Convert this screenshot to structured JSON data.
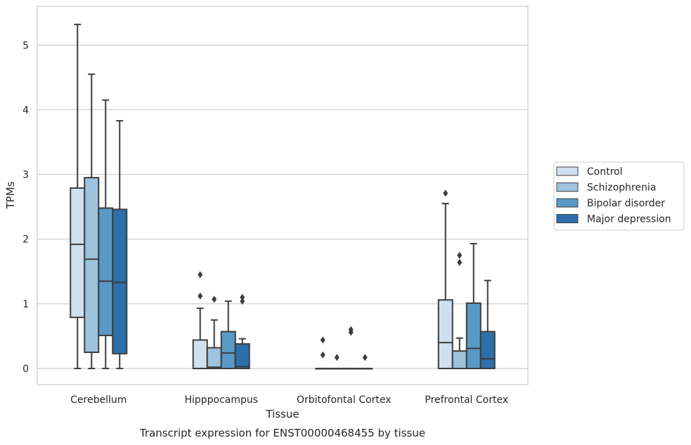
{
  "chart_data": {
    "type": "box",
    "title": "",
    "xlabel": "Tissue",
    "ylabel": "TPMs",
    "caption": "Transcript expression for ENST00000468455 by tissue",
    "ylim": [
      -0.25,
      5.6
    ],
    "yticks": [
      0,
      1,
      2,
      3,
      4,
      5
    ],
    "grid": "horizontal",
    "legend_position": "right",
    "categories": [
      "Cerebellum",
      "Hipppocampus",
      "Orbitofontal Cortex",
      "Prefrontal Cortex"
    ],
    "series": [
      {
        "name": "Control",
        "color": "#cfe0f0",
        "boxes": [
          {
            "min": 0.0,
            "q1": 0.79,
            "median": 1.92,
            "q3": 2.79,
            "max": 5.32,
            "outliers": []
          },
          {
            "min": 0.0,
            "q1": 0.0,
            "median": 0.0,
            "q3": 0.44,
            "max": 0.93,
            "outliers": [
              1.12,
              1.45
            ]
          },
          {
            "min": 0.0,
            "q1": 0.0,
            "median": 0.0,
            "q3": 0.0,
            "max": 0.0,
            "outliers": [
              0.21,
              0.44
            ]
          },
          {
            "min": 0.0,
            "q1": 0.0,
            "median": 0.4,
            "q3": 1.06,
            "max": 2.55,
            "outliers": [
              2.71
            ]
          }
        ]
      },
      {
        "name": "Schizophrenia",
        "color": "#9dc3de",
        "boxes": [
          {
            "min": 0.0,
            "q1": 0.25,
            "median": 1.69,
            "q3": 2.95,
            "max": 4.55,
            "outliers": []
          },
          {
            "min": 0.0,
            "q1": 0.0,
            "median": 0.02,
            "q3": 0.32,
            "max": 0.75,
            "outliers": [
              1.07
            ]
          },
          {
            "min": 0.0,
            "q1": 0.0,
            "median": 0.0,
            "q3": 0.0,
            "max": 0.0,
            "outliers": [
              0.17
            ]
          },
          {
            "min": 0.0,
            "q1": 0.0,
            "median": 0.0,
            "q3": 0.27,
            "max": 0.47,
            "outliers": [
              1.64,
              1.75
            ]
          }
        ]
      },
      {
        "name": "Bipolar disorder",
        "color": "#5899c6",
        "boxes": [
          {
            "min": 0.0,
            "q1": 0.51,
            "median": 1.35,
            "q3": 2.48,
            "max": 4.15,
            "outliers": []
          },
          {
            "min": 0.0,
            "q1": 0.0,
            "median": 0.24,
            "q3": 0.57,
            "max": 1.04,
            "outliers": []
          },
          {
            "min": 0.0,
            "q1": 0.0,
            "median": 0.0,
            "q3": 0.0,
            "max": 0.0,
            "outliers": [
              0.56,
              0.6
            ]
          },
          {
            "min": 0.0,
            "q1": 0.0,
            "median": 0.31,
            "q3": 1.01,
            "max": 1.93,
            "outliers": []
          }
        ]
      },
      {
        "name": "Major depression",
        "color": "#2c6fab",
        "boxes": [
          {
            "min": 0.0,
            "q1": 0.23,
            "median": 1.33,
            "q3": 2.46,
            "max": 3.83,
            "outliers": []
          },
          {
            "min": 0.0,
            "q1": 0.0,
            "median": 0.03,
            "q3": 0.38,
            "max": 0.46,
            "outliers": [
              1.04,
              1.1
            ]
          },
          {
            "min": 0.0,
            "q1": 0.0,
            "median": 0.0,
            "q3": 0.0,
            "max": 0.0,
            "outliers": [
              0.17
            ]
          },
          {
            "min": 0.0,
            "q1": 0.0,
            "median": 0.15,
            "q3": 0.57,
            "max": 1.36,
            "outliers": []
          }
        ]
      }
    ]
  }
}
